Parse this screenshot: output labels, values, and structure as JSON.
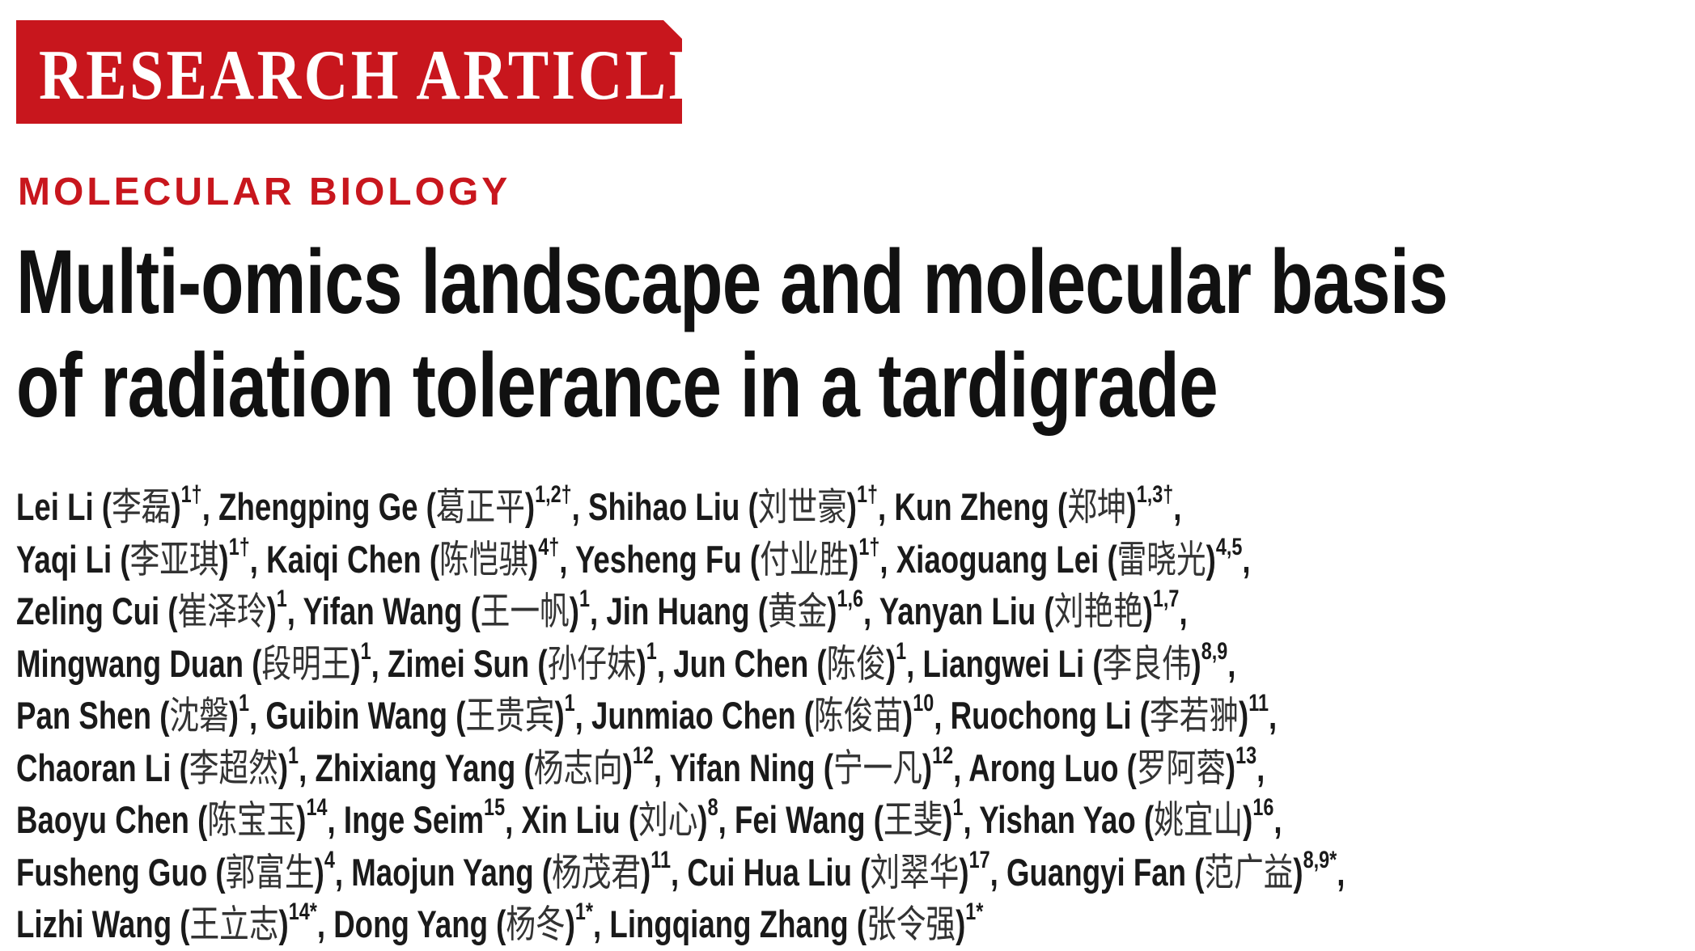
{
  "banner": {
    "label": "RESEARCH ARTICLE",
    "color": "#c8161d"
  },
  "section": "MOLECULAR BIOLOGY",
  "title": {
    "line1": "Multi-omics landscape and molecular basis",
    "line2": "of radiation tolerance in a tardigrade"
  },
  "author_lines": [
    [
      [
        "Lei Li",
        "李磊",
        "1†"
      ],
      [
        "Zhengping Ge",
        "葛正平",
        "1,2†"
      ],
      [
        "Shihao Liu",
        "刘世豪",
        "1†"
      ],
      [
        "Kun Zheng",
        "郑坤",
        "1,3†"
      ]
    ],
    [
      [
        "Yaqi Li",
        "李亚琪",
        "1†"
      ],
      [
        "Kaiqi Chen",
        "陈恺骐",
        "4†"
      ],
      [
        "Yesheng Fu",
        "付业胜",
        "1†"
      ],
      [
        "Xiaoguang Lei",
        "雷晓光",
        "4,5"
      ]
    ],
    [
      [
        "Zeling Cui",
        "崔泽玲",
        "1"
      ],
      [
        "Yifan Wang",
        "王一帆",
        "1"
      ],
      [
        "Jin Huang",
        "黄金",
        "1,6"
      ],
      [
        "Yanyan Liu",
        "刘艳艳",
        "1,7"
      ]
    ],
    [
      [
        "Mingwang Duan",
        "段明王",
        "1"
      ],
      [
        "Zimei Sun",
        "孙仔妹",
        "1"
      ],
      [
        "Jun Chen",
        "陈俊",
        "1"
      ],
      [
        "Liangwei Li",
        "李良伟",
        "8,9"
      ]
    ],
    [
      [
        "Pan Shen",
        "沈磐",
        "1"
      ],
      [
        "Guibin Wang",
        "王贵宾",
        "1"
      ],
      [
        "Junmiao Chen",
        "陈俊苗",
        "10"
      ],
      [
        "Ruochong Li",
        "李若翀",
        "11"
      ]
    ],
    [
      [
        "Chaoran Li",
        "李超然",
        "1"
      ],
      [
        "Zhixiang Yang",
        "杨志向",
        "12"
      ],
      [
        "Yifan Ning",
        "宁一凡",
        "12"
      ],
      [
        "Arong Luo",
        "罗阿蓉",
        "13"
      ]
    ],
    [
      [
        "Baoyu Chen",
        "陈宝玉",
        "14"
      ],
      [
        "Inge Seim",
        "",
        "15"
      ],
      [
        "Xin Liu",
        "刘心",
        "8"
      ],
      [
        "Fei Wang",
        "王斐",
        "1"
      ],
      [
        "Yishan Yao",
        "姚宜山",
        "16"
      ]
    ],
    [
      [
        "Fusheng Guo",
        "郭富生",
        "4"
      ],
      [
        "Maojun Yang",
        "杨茂君",
        "11"
      ],
      [
        "Cui Hua Liu",
        "刘翠华",
        "17"
      ],
      [
        "Guangyi Fan",
        "范广益",
        "8,9*"
      ]
    ],
    [
      [
        "Lizhi Wang",
        "王立志",
        "14*"
      ],
      [
        "Dong Yang",
        "杨冬",
        "1*"
      ],
      [
        "Lingqiang Zhang",
        "张令强",
        "1*"
      ]
    ]
  ]
}
